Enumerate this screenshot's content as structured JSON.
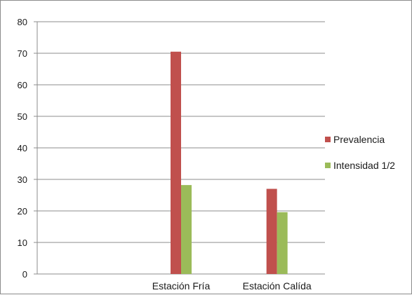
{
  "chart_data": {
    "type": "bar",
    "categories": [
      "",
      "Estación Fría",
      "Estación Calída"
    ],
    "series": [
      {
        "name": "Prevalencia",
        "values": [
          null,
          70.5,
          27
        ],
        "color": "#c0504d"
      },
      {
        "name": "Intensidad 1/2",
        "values": [
          null,
          28.2,
          19.6
        ],
        "color": "#9bbb59"
      }
    ],
    "yticks": [
      "0",
      "10",
      "20",
      "30",
      "40",
      "50",
      "60",
      "70",
      "80"
    ],
    "ylim": [
      0,
      80
    ],
    "grid": true,
    "legend_position": "right",
    "title": "",
    "xlabel": "",
    "ylabel": ""
  }
}
